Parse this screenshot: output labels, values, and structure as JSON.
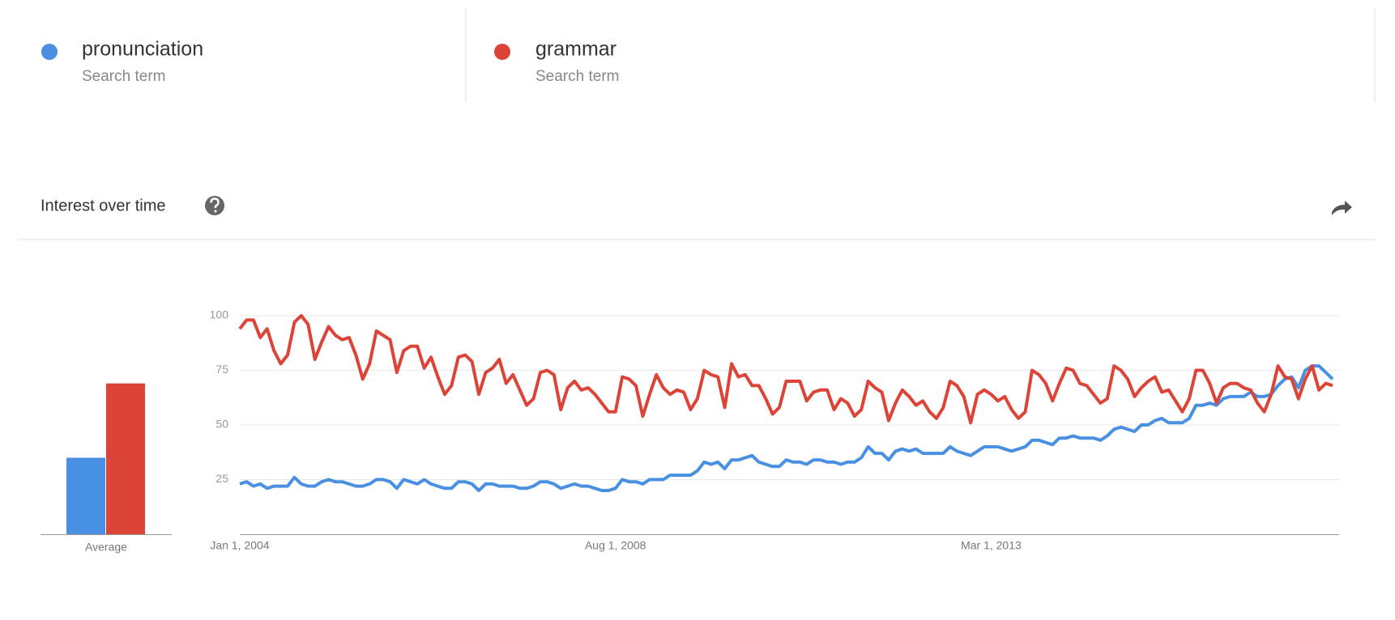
{
  "legend_subtitles": [
    "Search term",
    "Search term"
  ],
  "section_title": "Interest over time",
  "chart_data": [
    {
      "type": "bar",
      "categories": [
        "Average"
      ],
      "series": [
        {
          "color": "#4a90e2",
          "values": [
            35
          ]
        },
        {
          "color": "#db4437",
          "values": [
            69
          ]
        }
      ],
      "ylim": [
        0,
        100
      ]
    },
    {
      "type": "line",
      "categories": [
        "Jan 1, 2004",
        null,
        null,
        null,
        null,
        null,
        null,
        null,
        null,
        null,
        null,
        null,
        null,
        null,
        null,
        null,
        null,
        null,
        null,
        null,
        null,
        null,
        null,
        null,
        null,
        null,
        null,
        null,
        null,
        null,
        null,
        null,
        null,
        null,
        null,
        null,
        null,
        null,
        null,
        null,
        null,
        null,
        null,
        null,
        null,
        null,
        null,
        null,
        null,
        null,
        null,
        null,
        null,
        null,
        null,
        "Aug 1, 2008",
        null,
        null,
        null,
        null,
        null,
        null,
        null,
        null,
        null,
        null,
        null,
        null,
        null,
        null,
        null,
        null,
        null,
        null,
        null,
        null,
        null,
        null,
        null,
        null,
        null,
        null,
        null,
        null,
        null,
        null,
        null,
        null,
        null,
        null,
        null,
        null,
        null,
        null,
        null,
        null,
        null,
        null,
        null,
        null,
        null,
        null,
        null,
        null,
        null,
        null,
        null,
        null,
        null,
        null,
        "Mar 1, 2013",
        null,
        null,
        null,
        null,
        null,
        null,
        null,
        null,
        null,
        null,
        null,
        null,
        null,
        null,
        null,
        null,
        null,
        null,
        null,
        null,
        null,
        null,
        null,
        null,
        null,
        null,
        null,
        null,
        null,
        null,
        null,
        null,
        null,
        null,
        null,
        null,
        null,
        null,
        null,
        null,
        null,
        null,
        null,
        null,
        null,
        null,
        null,
        null,
        null,
        null
      ],
      "series": [
        {
          "name": "pronunciation",
          "color": "#4a90e2",
          "values": [
            23,
            24,
            22,
            23,
            21,
            22,
            22,
            22,
            26,
            23,
            22,
            22,
            24,
            25,
            24,
            24,
            23,
            22,
            22,
            23,
            25,
            25,
            24,
            21,
            25,
            24,
            23,
            25,
            23,
            22,
            21,
            21,
            24,
            24,
            23,
            20,
            23,
            23,
            22,
            22,
            22,
            21,
            21,
            22,
            24,
            24,
            23,
            21,
            22,
            23,
            22,
            22,
            21,
            20,
            20,
            21,
            25,
            24,
            24,
            23,
            25,
            25,
            25,
            27,
            27,
            27,
            27,
            29,
            33,
            32,
            33,
            30,
            34,
            34,
            35,
            36,
            33,
            32,
            31,
            31,
            34,
            33,
            33,
            32,
            34,
            34,
            33,
            33,
            32,
            33,
            33,
            35,
            40,
            37,
            37,
            34,
            38,
            39,
            38,
            39,
            37,
            37,
            37,
            37,
            40,
            38,
            37,
            36,
            38,
            40,
            40,
            40,
            39,
            38,
            39,
            40,
            43,
            43,
            42,
            41,
            44,
            44,
            45,
            44,
            44,
            44,
            43,
            45,
            48,
            49,
            48,
            47,
            50,
            50,
            52,
            53,
            51,
            51,
            51,
            53,
            59,
            59,
            60,
            59,
            62,
            63,
            63,
            63,
            65,
            63,
            63,
            64,
            68,
            71,
            72,
            67,
            75,
            77,
            77,
            74,
            71
          ]
        },
        {
          "name": "grammar",
          "color": "#db4437",
          "values": [
            94,
            98,
            98,
            90,
            94,
            84,
            78,
            82,
            97,
            100,
            96,
            80,
            88,
            95,
            91,
            89,
            90,
            82,
            71,
            78,
            93,
            91,
            89,
            74,
            84,
            86,
            86,
            76,
            81,
            72,
            64,
            68,
            81,
            82,
            79,
            64,
            74,
            76,
            80,
            69,
            73,
            66,
            59,
            62,
            74,
            75,
            73,
            57,
            67,
            70,
            66,
            67,
            64,
            60,
            56,
            56,
            72,
            71,
            68,
            54,
            64,
            73,
            67,
            64,
            66,
            65,
            57,
            62,
            75,
            73,
            72,
            58,
            78,
            72,
            73,
            68,
            68,
            62,
            55,
            58,
            70,
            70,
            70,
            61,
            65,
            66,
            66,
            57,
            62,
            60,
            54,
            57,
            70,
            67,
            65,
            52,
            60,
            66,
            63,
            59,
            61,
            56,
            53,
            58,
            70,
            68,
            63,
            51,
            64,
            66,
            64,
            61,
            63,
            57,
            53,
            56,
            75,
            73,
            69,
            61,
            69,
            76,
            75,
            69,
            68,
            64,
            60,
            62,
            77,
            75,
            71,
            63,
            67,
            70,
            72,
            65,
            66,
            61,
            56,
            62,
            75,
            75,
            69,
            60,
            67,
            69,
            69,
            67,
            66,
            60,
            56,
            64,
            77,
            72,
            71,
            62,
            71,
            77,
            66,
            69,
            68
          ]
        }
      ],
      "ylim": [
        0,
        100
      ],
      "yticks": [
        25,
        50,
        75,
        100
      ],
      "grid": true
    }
  ]
}
